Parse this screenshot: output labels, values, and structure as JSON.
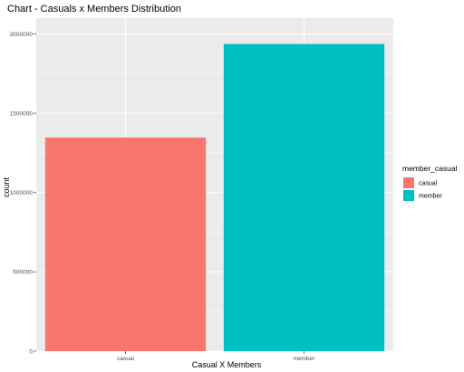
{
  "chart_data": {
    "type": "bar",
    "title": "Chart - Casuals x Members Distribution",
    "xlabel": "Casual X Members",
    "ylabel": "count",
    "categories": [
      "casual",
      "member"
    ],
    "values": [
      1347000,
      1937000
    ],
    "colors": [
      "#F8766D",
      "#00BFC4"
    ],
    "ylim": [
      0,
      2100000
    ],
    "yticks": [
      0,
      500000,
      1000000,
      1500000,
      2000000
    ],
    "ytick_labels": [
      "0",
      "500000",
      "1000000",
      "1500000",
      "2000000"
    ],
    "grid": true,
    "panel_background": "#EBEBEB",
    "legend": {
      "title": "member_casual",
      "placement": "right",
      "entries": [
        {
          "label": "casual",
          "color": "#F8766D"
        },
        {
          "label": "member",
          "color": "#00BFC4"
        }
      ]
    }
  }
}
